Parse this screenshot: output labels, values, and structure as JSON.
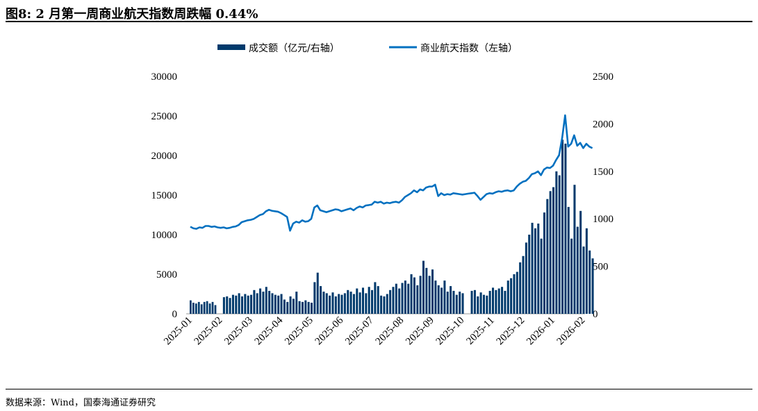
{
  "title": "图8:  2 月第一周商业航天指数周跌幅 0.44%",
  "source": "数据来源：Wind，国泰海通证券研究",
  "chart_data": {
    "type": "bar+line",
    "legend_position": "top",
    "colors": {
      "bars": "#003a6c",
      "line": "#0070c0"
    },
    "left_axis": {
      "range": [
        0,
        30000
      ],
      "ticks": [
        "0",
        "5000",
        "10000",
        "15000",
        "20000",
        "25000",
        "30000"
      ]
    },
    "right_axis": {
      "range": [
        0,
        2500
      ],
      "ticks": [
        "0",
        "500",
        "1000",
        "1500",
        "2000",
        "2500"
      ]
    },
    "x_ticks": [
      "2025-01",
      "2025-02",
      "2025-03",
      "2025-04",
      "2025-05",
      "2025-06",
      "2025-07",
      "2025-08",
      "2025-09",
      "2025-10",
      "2025-11",
      "2025-12",
      "2026-01",
      "2026-02"
    ],
    "series": [
      {
        "name": "成交额（亿元/右轴）",
        "type": "bar",
        "axis": "left",
        "values_by_month": [
          [
            1700,
            1400,
            1300,
            1500,
            1200,
            1500,
            1600,
            1300,
            1500,
            1100,
            null
          ],
          [
            null,
            2100,
            2200,
            2000,
            2400,
            2300,
            2600,
            2200,
            2500,
            2300
          ],
          [
            2400,
            3000,
            2600,
            3200,
            2800,
            3400,
            2900,
            2600,
            2400,
            2300
          ],
          [
            2500,
            1800,
            1500,
            2200,
            1900,
            2800,
            1600,
            1500,
            1700,
            1500
          ],
          [
            1400,
            4000,
            5200,
            3500,
            2800,
            2600,
            2300,
            2700,
            2200,
            2500
          ],
          [
            2400,
            2600,
            3000,
            2800,
            2500,
            3200,
            2700,
            3300,
            2600,
            3400
          ],
          [
            3000,
            4000,
            3500,
            2300,
            2200,
            2500,
            3000,
            3400,
            3800,
            3200
          ],
          [
            3900,
            4200,
            3800,
            5000,
            4600,
            3600,
            4800,
            6700,
            5800,
            4800
          ],
          [
            5600,
            4200,
            3600,
            3300,
            4200,
            2800,
            3500,
            2900,
            2400,
            2800
          ],
          [
            2600,
            null,
            null,
            2900,
            3000,
            2200,
            2700,
            2400,
            2300,
            2900
          ],
          [
            3300,
            3000,
            3200,
            3400,
            2900,
            4200,
            4500,
            5000,
            5300,
            6500
          ],
          [
            7300,
            9000,
            10000,
            11500,
            10800,
            11400,
            9500,
            12800,
            14500,
            15500
          ],
          [
            16000,
            18000,
            17500,
            22000,
            21500,
            13500,
            9500,
            16300,
            11000,
            13000
          ],
          [
            8500,
            10800,
            8000,
            7000
          ]
        ]
      },
      {
        "name": "商业航天指数（左轴）",
        "type": "line",
        "axis": "right",
        "values_by_month": [
          [
            917,
            900,
            895,
            910,
            905,
            925,
            925,
            915,
            920,
            910
          ],
          [
            905,
            910,
            900,
            905,
            915,
            920,
            935,
            965,
            975,
            985
          ],
          [
            990,
            1000,
            1020,
            1040,
            1050,
            1080,
            1095,
            1085,
            1080,
            1075
          ],
          [
            1060,
            1040,
            1020,
            875,
            950,
            970,
            960,
            985,
            970,
            975
          ],
          [
            1000,
            1120,
            1140,
            1090,
            1080,
            1070,
            1080,
            1090,
            1100,
            1095
          ],
          [
            1080,
            1090,
            1100,
            1110,
            1090,
            1115,
            1130,
            1120,
            1140,
            1145
          ],
          [
            1150,
            1180,
            1170,
            1180,
            1160,
            1170,
            1165,
            1175,
            1180,
            1170
          ],
          [
            1195,
            1230,
            1250,
            1270,
            1300,
            1280,
            1310,
            1300,
            1330,
            1340
          ],
          [
            1340,
            1360,
            1240,
            1270,
            1250,
            1260,
            1255,
            1270,
            1265,
            1260
          ],
          [
            1255,
            1260,
            1265,
            1270,
            1275,
            1240,
            1200,
            1230,
            1260,
            1270
          ],
          [
            1265,
            1280,
            1290,
            1285,
            1295,
            1300,
            1290,
            1300,
            1340,
            1370
          ],
          [
            1390,
            1400,
            1430,
            1470,
            1480,
            1500,
            1460,
            1520,
            1540,
            1535
          ],
          [
            1560,
            1620,
            1670,
            1850,
            2090,
            1760,
            1790,
            1880,
            1770,
            1800
          ],
          [
            1745,
            1790,
            1760,
            1745
          ]
        ]
      }
    ]
  }
}
